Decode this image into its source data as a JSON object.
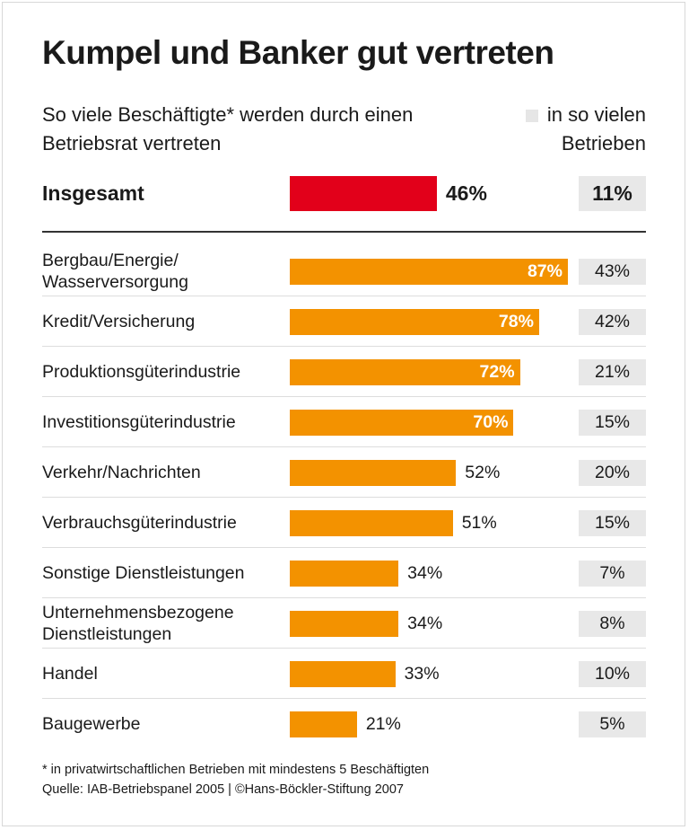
{
  "chart_data": {
    "type": "bar",
    "orientation": "horizontal",
    "title": "Kumpel und Banker gut vertreten",
    "subtitle": "So viele Beschäftigte* werden durch einen Betriebsrat vertreten",
    "secondary_legend": "in so vielen Betrieben",
    "total": {
      "label": "Insgesamt",
      "value": 46,
      "value_label": "46%",
      "betriebe": 11,
      "betriebe_label": "11%"
    },
    "categories": [
      "Bergbau/Energie/\nWasserversorgung",
      "Kredit/Versicherung",
      "Produktionsgüterindustrie",
      "Investitionsgüterindustrie",
      "Verkehr/Nachrichten",
      "Verbrauchsgüterindustrie",
      "Sonstige Dienstleistungen",
      "Unternehmensbezogene\nDienstleistungen",
      "Handel",
      "Baugewerbe"
    ],
    "series": [
      {
        "values": [
          87,
          78,
          72,
          70,
          52,
          51,
          34,
          34,
          33,
          21
        ],
        "labels": [
          "87%",
          "78%",
          "72%",
          "70%",
          "52%",
          "51%",
          "34%",
          "34%",
          "33%",
          "21%"
        ]
      },
      {
        "values": [
          43,
          42,
          21,
          15,
          20,
          15,
          7,
          8,
          10,
          5
        ],
        "labels": [
          "43%",
          "42%",
          "21%",
          "15%",
          "20%",
          "15%",
          "7%",
          "8%",
          "10%",
          "5%"
        ]
      }
    ],
    "xlim": [
      0,
      100
    ],
    "colors": {
      "total": "#e2001a",
      "bars": "#f39200",
      "betriebe_box": "#e8e8e8"
    }
  },
  "footnote": "* in privatwirtschaftlichen Betrieben mit mindestens 5 Beschäftigten",
  "source": "Quelle: IAB-Betriebspanel 2005 | ©Hans-Böckler-Stiftung 2007"
}
